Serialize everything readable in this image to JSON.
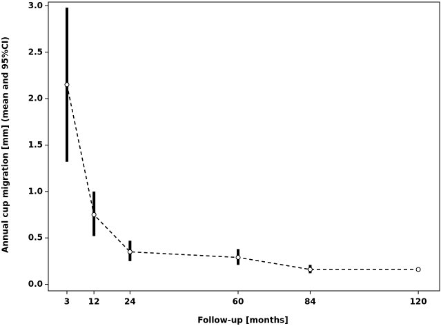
{
  "chart_data": {
    "type": "line",
    "x_label": "Follow-up [months]",
    "y_label": "Annual cup migration [mm]  (mean and 95%CI)",
    "x": [
      3,
      12,
      24,
      60,
      84,
      120
    ],
    "series": [
      {
        "color": "#000000",
        "values": [
          2.15,
          0.75,
          0.35,
          0.29,
          0.16,
          0.16
        ],
        "lower": [
          1.32,
          0.52,
          0.25,
          0.21,
          0.12,
          0.15
        ],
        "upper": [
          2.98,
          1.0,
          0.47,
          0.38,
          0.21,
          0.18
        ]
      }
    ],
    "xlim": [
      -3.2,
      127.1
    ],
    "ylim": [
      -0.07,
      3.04
    ],
    "xticks": [
      3,
      12,
      24,
      60,
      84,
      120
    ],
    "yticks": [
      {
        "value": 0,
        "label": "0.0"
      },
      0.5,
      {
        "value": 1,
        "label": "1.0"
      },
      1.5,
      {
        "value": 2,
        "label": "2.0"
      },
      2.5,
      {
        "value": 3,
        "label": "3.0"
      }
    ],
    "line_style": "dashed"
  }
}
